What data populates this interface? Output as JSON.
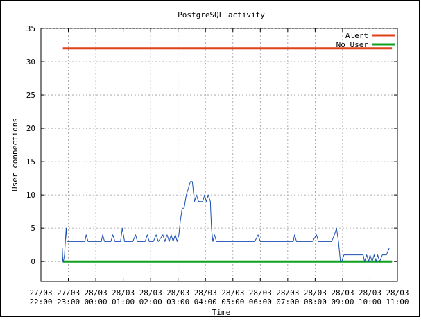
{
  "chart_data": {
    "type": "line",
    "title": "PostgreSQL activity",
    "xlabel": "Time",
    "ylabel": "User connections",
    "ylim": [
      -3,
      35
    ],
    "y_ticks": [
      0,
      5,
      10,
      15,
      20,
      25,
      30,
      35
    ],
    "xlim_hours": [
      22.0,
      35.0
    ],
    "x_ticks": [
      {
        "hour": 22,
        "date": "27/03",
        "time": "22:00"
      },
      {
        "hour": 23,
        "date": "27/03",
        "time": "23:00"
      },
      {
        "hour": 24,
        "date": "28/03",
        "time": "00:00"
      },
      {
        "hour": 25,
        "date": "28/03",
        "time": "01:00"
      },
      {
        "hour": 26,
        "date": "28/03",
        "time": "02:00"
      },
      {
        "hour": 27,
        "date": "28/03",
        "time": "03:00"
      },
      {
        "hour": 28,
        "date": "28/03",
        "time": "04:00"
      },
      {
        "hour": 29,
        "date": "28/03",
        "time": "05:00"
      },
      {
        "hour": 30,
        "date": "28/03",
        "time": "06:00"
      },
      {
        "hour": 31,
        "date": "28/03",
        "time": "07:00"
      },
      {
        "hour": 32,
        "date": "28/03",
        "time": "08:00"
      },
      {
        "hour": 33,
        "date": "28/03",
        "time": "09:00"
      },
      {
        "hour": 34,
        "date": "28/03",
        "time": "10:00"
      },
      {
        "hour": 35,
        "date": "28/03",
        "time": "11:00"
      }
    ],
    "grid": true,
    "legend_position": "top-right",
    "series": [
      {
        "name": "Alert",
        "color": "#e0401a",
        "points": [
          [
            22.8,
            32
          ],
          [
            34.8,
            32
          ]
        ]
      },
      {
        "name": "No User",
        "color": "#10a020",
        "points": [
          [
            22.8,
            0
          ],
          [
            34.8,
            0
          ]
        ]
      },
      {
        "name": "",
        "color": "#1a4fb0",
        "points": [
          [
            22.78,
            2
          ],
          [
            22.8,
            0
          ],
          [
            22.82,
            0
          ],
          [
            22.86,
            1
          ],
          [
            22.92,
            5
          ],
          [
            22.95,
            3
          ],
          [
            23.1,
            3
          ],
          [
            23.3,
            3
          ],
          [
            23.5,
            3
          ],
          [
            23.6,
            3
          ],
          [
            23.65,
            4
          ],
          [
            23.72,
            3
          ],
          [
            23.9,
            3
          ],
          [
            24.1,
            3
          ],
          [
            24.2,
            3
          ],
          [
            24.25,
            4
          ],
          [
            24.32,
            3
          ],
          [
            24.55,
            3
          ],
          [
            24.62,
            4
          ],
          [
            24.7,
            3
          ],
          [
            24.9,
            3
          ],
          [
            24.97,
            5
          ],
          [
            25.05,
            3
          ],
          [
            25.35,
            3
          ],
          [
            25.45,
            4
          ],
          [
            25.52,
            3
          ],
          [
            25.8,
            3
          ],
          [
            25.88,
            4
          ],
          [
            25.95,
            3
          ],
          [
            26.1,
            3
          ],
          [
            26.2,
            4
          ],
          [
            26.28,
            3
          ],
          [
            26.45,
            4
          ],
          [
            26.52,
            3
          ],
          [
            26.6,
            4
          ],
          [
            26.68,
            3
          ],
          [
            26.75,
            4
          ],
          [
            26.82,
            3
          ],
          [
            26.9,
            4
          ],
          [
            26.97,
            3
          ],
          [
            27.03,
            4
          ],
          [
            27.08,
            6
          ],
          [
            27.15,
            8
          ],
          [
            27.22,
            8
          ],
          [
            27.3,
            10
          ],
          [
            27.38,
            11
          ],
          [
            27.45,
            12
          ],
          [
            27.52,
            12
          ],
          [
            27.6,
            9
          ],
          [
            27.67,
            10
          ],
          [
            27.75,
            9
          ],
          [
            27.82,
            9
          ],
          [
            27.9,
            9
          ],
          [
            27.97,
            10
          ],
          [
            28.03,
            9
          ],
          [
            28.1,
            10
          ],
          [
            28.18,
            9
          ],
          [
            28.22,
            5
          ],
          [
            28.27,
            3
          ],
          [
            28.33,
            4
          ],
          [
            28.4,
            3
          ],
          [
            28.6,
            3
          ],
          [
            29.0,
            3
          ],
          [
            29.4,
            3
          ],
          [
            29.8,
            3
          ],
          [
            29.92,
            4
          ],
          [
            30.0,
            3
          ],
          [
            30.4,
            3
          ],
          [
            30.8,
            3
          ],
          [
            31.2,
            3
          ],
          [
            31.25,
            4
          ],
          [
            31.32,
            3
          ],
          [
            31.6,
            3
          ],
          [
            31.9,
            3
          ],
          [
            32.05,
            4
          ],
          [
            32.12,
            3
          ],
          [
            32.4,
            3
          ],
          [
            32.6,
            3
          ],
          [
            32.7,
            4
          ],
          [
            32.78,
            5
          ],
          [
            32.85,
            3
          ],
          [
            32.92,
            0
          ],
          [
            32.97,
            0
          ],
          [
            33.05,
            1
          ],
          [
            33.2,
            1
          ],
          [
            33.4,
            1
          ],
          [
            33.6,
            1
          ],
          [
            33.75,
            1
          ],
          [
            33.8,
            0
          ],
          [
            33.88,
            1
          ],
          [
            33.95,
            0
          ],
          [
            34.0,
            1
          ],
          [
            34.08,
            0
          ],
          [
            34.15,
            1
          ],
          [
            34.22,
            0
          ],
          [
            34.28,
            1
          ],
          [
            34.35,
            0
          ],
          [
            34.45,
            1
          ],
          [
            34.6,
            1
          ],
          [
            34.7,
            2
          ]
        ]
      }
    ]
  }
}
